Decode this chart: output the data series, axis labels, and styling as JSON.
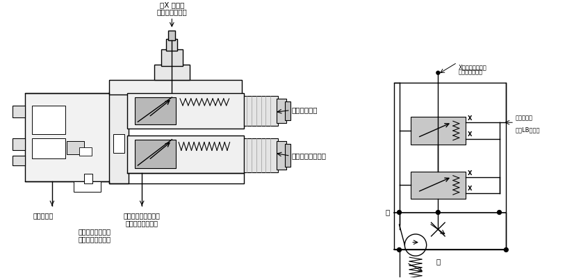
{
  "bg_color": "#ffffff",
  "line_color": "#000000",
  "gray_fill": "#c8c8c8",
  "light_gray": "#e8e8e8",
  "top_label": "负载敏感连接口",
  "top_label2": "（X 油口）",
  "right_label1": "压差调整螺钉",
  "right_label2": "最高压力调整螺钉",
  "bottom_left1": "泄漏至壳体",
  "bottom_mid1": "控制压力至伺服活塞",
  "bottom_mid2": "（柱塞行程减小）",
  "bottom_left3": "泵压力至伺服活塞",
  "bottom_left4": "（柱塞行程加长）",
  "schematic_top": "X油口（此处连接",
  "schematic_top2": "负载传感管路）",
  "schematic_right1": "排放节流口",
  "schematic_right2": "（仅LB控制）",
  "schematic_out": "出",
  "schematic_in": "进"
}
